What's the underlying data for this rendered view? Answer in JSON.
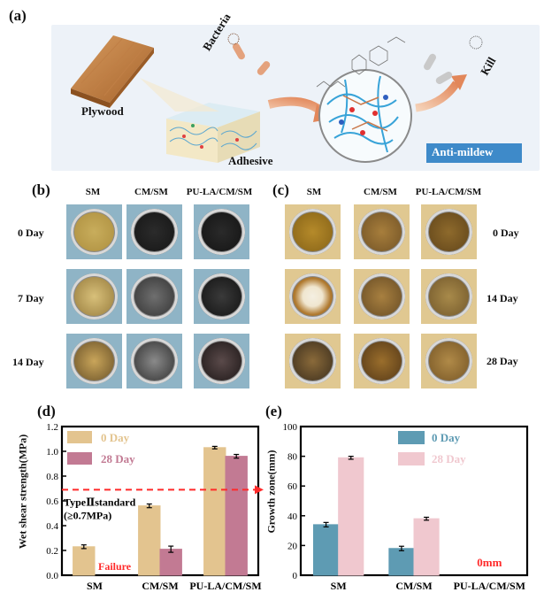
{
  "panel_a": {
    "letter": "(a)",
    "labels": {
      "plywood": "Plywood",
      "bacteria": "Bacteria",
      "adhesive": "Adhesive",
      "kill": "Kill",
      "anti_mildew": "Anti-mildew"
    }
  },
  "panel_b": {
    "letter": "(b)",
    "columns": [
      "SM",
      "CM/SM",
      "PU-LA/CM/SM"
    ],
    "rows": [
      "0  Day",
      "7  Day",
      "14  Day"
    ],
    "tile_color": "#8fb4c6"
  },
  "panel_c": {
    "letter": "(c)",
    "columns": [
      "SM",
      "CM/SM",
      "PU-LA/CM/SM"
    ],
    "rows": [
      "0  Day",
      "14  Day",
      "28  Day"
    ],
    "tile_color": "#e0c891"
  },
  "chart_data": [
    {
      "panel": "(d)",
      "type": "bar",
      "ylabel": "Wet shear strength(MPa)",
      "ylim": [
        0,
        1.2
      ],
      "yticks": [
        "0.0",
        "0.2",
        "0.4",
        "0.6",
        "0.8",
        "1.0",
        "1.2"
      ],
      "categories": [
        "SM",
        "CM/SM",
        "PU-LA/CM/SM"
      ],
      "series": [
        {
          "name": "0 Day",
          "color": "#e3c48f",
          "values": [
            0.23,
            0.56,
            1.03
          ],
          "errors": [
            0.015,
            0.015,
            0.01
          ]
        },
        {
          "name": "28 Day",
          "color": "#c27a93",
          "values": [
            0,
            0.21,
            0.96
          ],
          "errors": [
            0,
            0.025,
            0.015
          ]
        }
      ],
      "reference_line": {
        "value": 0.69,
        "color": "#ff2a2a",
        "label": "TypeⅡstandard",
        "label2": "(≥0.7MPa)"
      },
      "annotation": "Failure",
      "annotation_color": "#ff2a2a",
      "legend": "top-left"
    },
    {
      "panel": "(e)",
      "type": "bar",
      "ylabel": "Growth zone(mm)",
      "ylim": [
        0,
        100
      ],
      "yticks": [
        "0",
        "20",
        "40",
        "60",
        "80",
        "100"
      ],
      "categories": [
        "SM",
        "CM/SM",
        "PU-LA/CM/SM"
      ],
      "series": [
        {
          "name": "0 Day",
          "color": "#5e9bb3",
          "values": [
            34,
            18,
            0
          ],
          "errors": [
            1.5,
            1.5,
            0
          ]
        },
        {
          "name": "28 Day",
          "color": "#f0c8cf",
          "values": [
            79,
            38,
            0
          ],
          "errors": [
            1,
            1,
            0
          ]
        }
      ],
      "annotation": "0mm",
      "annotation_color": "#ff2a2a",
      "legend": "top-right"
    }
  ]
}
